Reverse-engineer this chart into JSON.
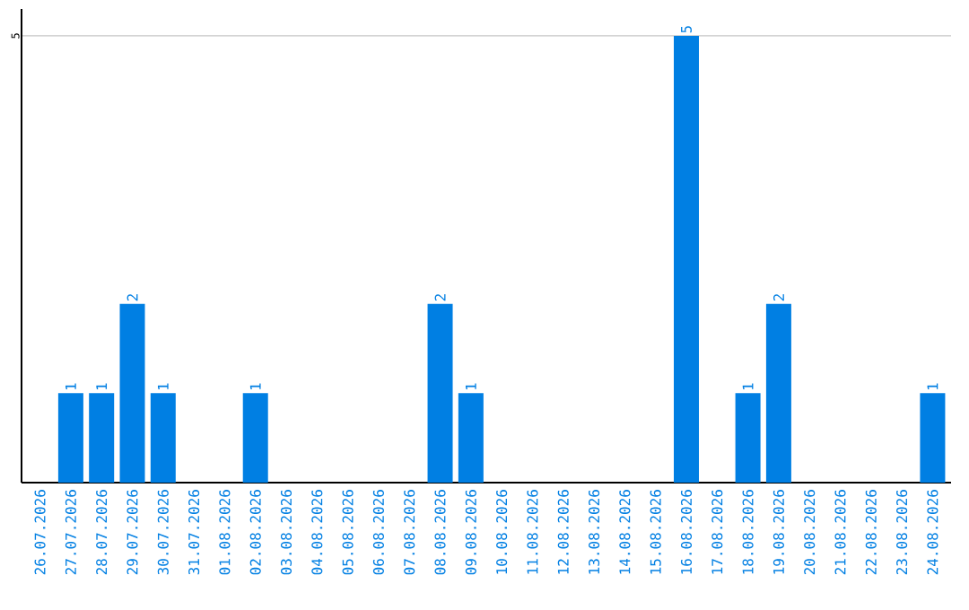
{
  "chart_data": {
    "type": "bar",
    "categories": [
      "26.07.2026",
      "27.07.2026",
      "28.07.2026",
      "29.07.2026",
      "30.07.2026",
      "31.07.2026",
      "01.08.2026",
      "02.08.2026",
      "03.08.2026",
      "04.08.2026",
      "05.08.2026",
      "06.08.2026",
      "07.08.2026",
      "08.08.2026",
      "09.08.2026",
      "10.08.2026",
      "11.08.2026",
      "12.08.2026",
      "13.08.2026",
      "14.08.2026",
      "15.08.2026",
      "16.08.2026",
      "17.08.2026",
      "18.08.2026",
      "19.08.2026",
      "20.08.2026",
      "21.08.2026",
      "22.08.2026",
      "23.08.2026",
      "24.08.2026"
    ],
    "values": [
      0,
      1,
      1,
      2,
      1,
      0,
      0,
      1,
      0,
      0,
      0,
      0,
      0,
      2,
      1,
      0,
      0,
      0,
      0,
      0,
      0,
      5,
      0,
      1,
      2,
      0,
      0,
      0,
      0,
      1
    ],
    "value_labels": [
      null,
      "1",
      "1",
      "2",
      "1",
      null,
      null,
      "1",
      null,
      null,
      null,
      null,
      null,
      "2",
      "1",
      null,
      null,
      null,
      null,
      null,
      null,
      "5",
      null,
      "1",
      "2",
      null,
      null,
      null,
      null,
      "1"
    ],
    "color": "#007fe3",
    "ylim": [
      0,
      5.3
    ],
    "yticks": [
      5
    ],
    "grid": "y"
  }
}
